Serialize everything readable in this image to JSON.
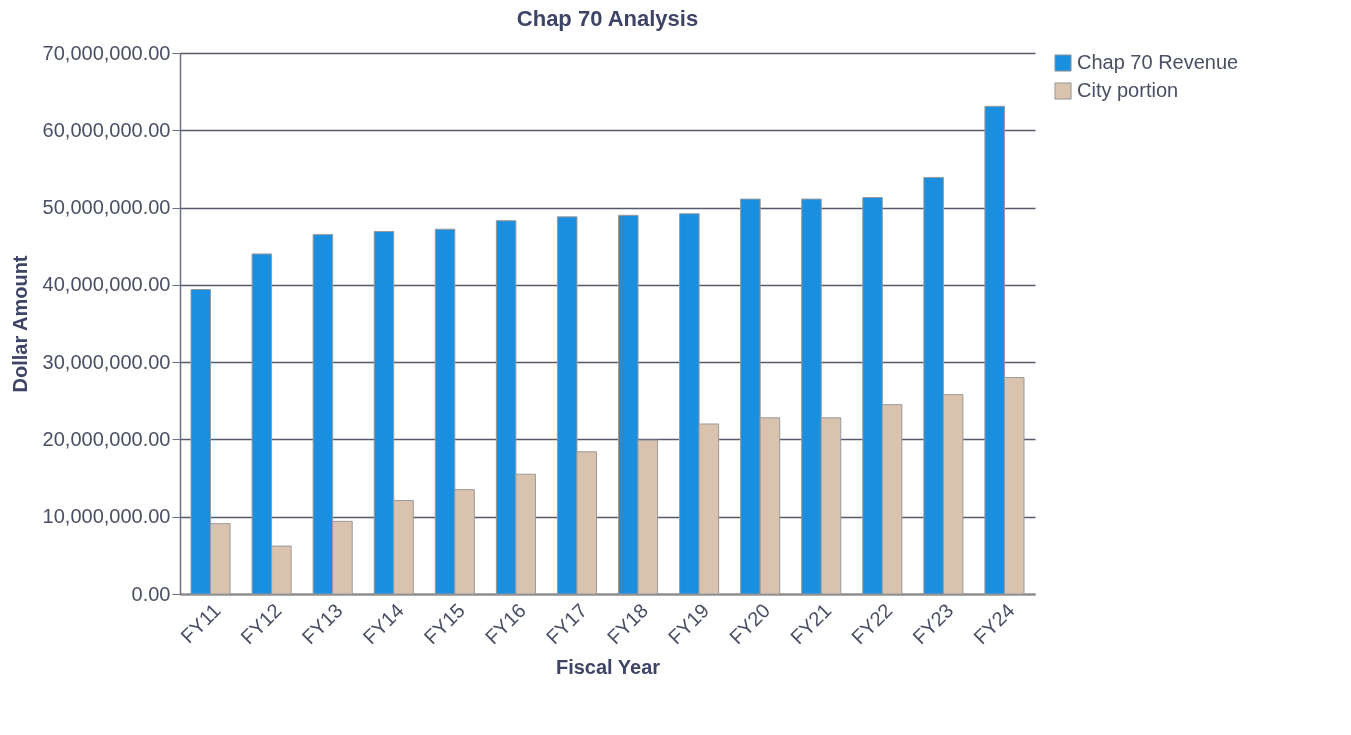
{
  "chart_data": {
    "type": "bar",
    "title": "Chap 70 Analysis",
    "xlabel": "Fiscal Year",
    "ylabel": "Dollar Amount",
    "categories": [
      "FY11",
      "FY12",
      "FY13",
      "FY14",
      "FY15",
      "FY16",
      "FY17",
      "FY18",
      "FY19",
      "FY20",
      "FY21",
      "FY22",
      "FY23",
      "FY24"
    ],
    "series": [
      {
        "name": "Chap 70 Revenue",
        "color": "#1a8fe0",
        "values": [
          39400000,
          44000000,
          46500000,
          46900000,
          47200000,
          48300000,
          48800000,
          49000000,
          49200000,
          51100000,
          51100000,
          51300000,
          53900000,
          63100000
        ]
      },
      {
        "name": "City portion",
        "color": "#d9c3ae",
        "values": [
          9100000,
          6200000,
          9400000,
          12100000,
          13500000,
          15500000,
          18400000,
          19900000,
          22000000,
          22800000,
          22800000,
          24500000,
          25800000,
          28000000
        ]
      }
    ],
    "ylim": [
      0,
      70000000
    ],
    "yticks": [
      {
        "value": 0,
        "label": "0.00"
      },
      {
        "value": 10000000,
        "label": "10,000,000.00"
      },
      {
        "value": 20000000,
        "label": "20,000,000.00"
      },
      {
        "value": 30000000,
        "label": "30,000,000.00"
      },
      {
        "value": 40000000,
        "label": "40,000,000.00"
      },
      {
        "value": 50000000,
        "label": "50,000,000.00"
      },
      {
        "value": 60000000,
        "label": "60,000,000.00"
      },
      {
        "value": 70000000,
        "label": "70,000,000.00"
      }
    ],
    "grid": "y",
    "legend": "right"
  }
}
